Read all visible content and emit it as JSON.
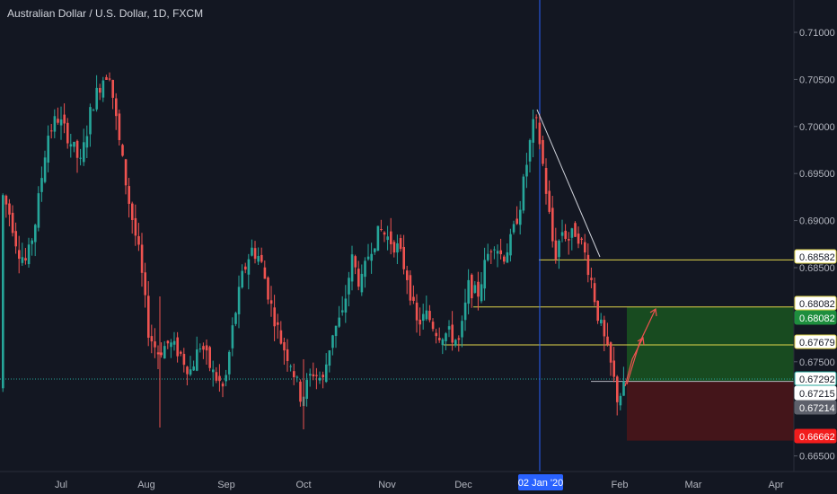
{
  "chart_data": {
    "type": "candlestick",
    "title": "Australian Dollar / U.S. Dollar, 1D, FXCM",
    "x_tick_labels": [
      "Jul",
      "Aug",
      "Sep",
      "Oct",
      "Nov",
      "Dec",
      "Feb",
      "Mar",
      "Apr"
    ],
    "crosshair_date_label": "02 Jan '20",
    "y_tick_labels": [
      "0.71000",
      "0.70500",
      "0.70000",
      "0.69500",
      "0.69000",
      "0.68500",
      "0.67500",
      "0.66500"
    ],
    "ylim": [
      0.6635,
      0.7128
    ],
    "grid": false,
    "candles_ohlc_sample": [
      {
        "date": "2019-06-20",
        "o": 0.688,
        "h": 0.6945,
        "l": 0.686,
        "c": 0.692
      },
      {
        "date": "2019-07-18",
        "o": 0.7,
        "h": 0.7082,
        "l": 0.699,
        "c": 0.7068
      },
      {
        "date": "2019-08-07",
        "o": 0.679,
        "h": 0.681,
        "l": 0.6677,
        "c": 0.675
      },
      {
        "date": "2019-09-12",
        "o": 0.685,
        "h": 0.6895,
        "l": 0.684,
        "c": 0.687
      },
      {
        "date": "2019-10-01",
        "o": 0.674,
        "h": 0.675,
        "l": 0.667,
        "c": 0.67
      },
      {
        "date": "2019-10-31",
        "o": 0.688,
        "h": 0.693,
        "l": 0.686,
        "c": 0.6905
      },
      {
        "date": "2019-12-31",
        "o": 0.699,
        "h": 0.7032,
        "l": 0.697,
        "c": 0.7015
      },
      {
        "date": "2020-01-31",
        "o": 0.67,
        "h": 0.673,
        "l": 0.6682,
        "c": 0.6721
      }
    ],
    "horizontal_levels": [
      0.68582,
      0.68082,
      0.67679,
      0.67292
    ],
    "price_labels": [
      {
        "value": "0.68582",
        "style": "yellow-outline"
      },
      {
        "value": "0.68082",
        "style": "yellow-outline"
      },
      {
        "value": "0.68082",
        "style": "green"
      },
      {
        "value": "0.67679",
        "style": "yellow-outline"
      },
      {
        "value": "0.67292",
        "style": "teal-outline"
      },
      {
        "value": "0.67215",
        "style": "white"
      },
      {
        "value": "0.67214",
        "style": "gray"
      },
      {
        "value": "0.66662",
        "style": "red"
      }
    ],
    "position": {
      "entry": 0.67292,
      "target": 0.68082,
      "stop": 0.66662
    },
    "colors": {
      "background": "#131722",
      "up": "#26a69a",
      "down": "#ef5350",
      "level_line": "#e0d44a",
      "crosshair": "#2962ff",
      "profit_zone": "#1b5e20",
      "loss_zone": "#4a1519",
      "axis_text": "#b2b5be"
    }
  }
}
